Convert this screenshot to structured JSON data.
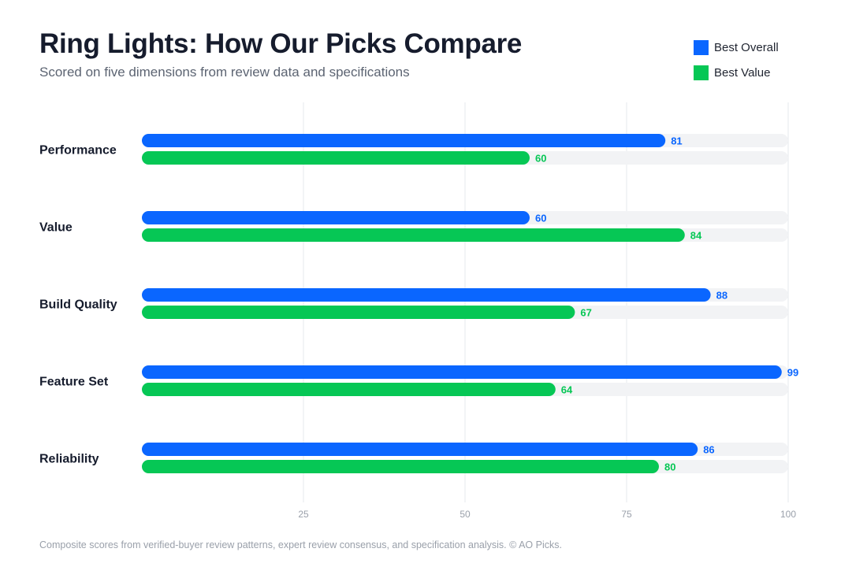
{
  "header": {
    "title": "Ring Lights: How Our Picks Compare",
    "subtitle": "Scored on five dimensions from review data and specifications"
  },
  "legend": [
    {
      "label": "Best Overall",
      "color": "#0a66ff"
    },
    {
      "label": "Best Value",
      "color": "#06c755"
    }
  ],
  "footer": "Composite scores from verified-buyer review patterns, expert review consensus, and specification analysis. © AO Picks.",
  "chart_data": {
    "type": "bar",
    "orientation": "horizontal",
    "title": "Ring Lights: How Our Picks Compare",
    "subtitle": "Scored on five dimensions from review data and specifications",
    "categories": [
      "Performance",
      "Value",
      "Build Quality",
      "Feature Set",
      "Reliability"
    ],
    "series": [
      {
        "name": "Best Overall",
        "color": "#0a66ff",
        "values": [
          81,
          60,
          88,
          99,
          86
        ]
      },
      {
        "name": "Best Value",
        "color": "#06c755",
        "values": [
          60,
          84,
          67,
          64,
          80
        ]
      }
    ],
    "xlim": [
      0,
      100
    ],
    "xticks": [
      25,
      50,
      75,
      100
    ],
    "track_color": "#f2f3f5",
    "grid": true,
    "legend_position": "top-right"
  }
}
